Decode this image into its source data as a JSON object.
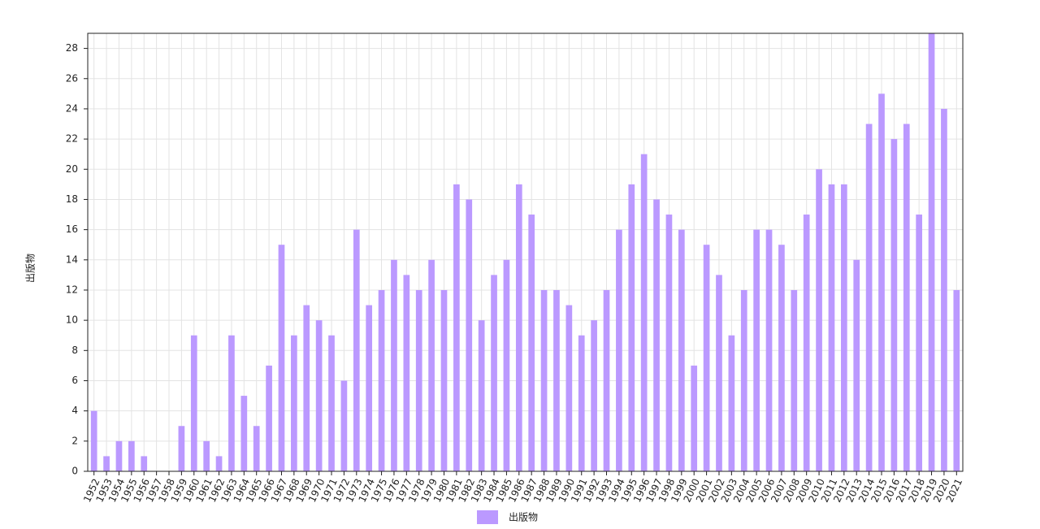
{
  "chart_data": {
    "type": "bar",
    "y_label": "出版物",
    "categories": [
      "1952",
      "1953",
      "1954",
      "1955",
      "1956",
      "1957",
      "1958",
      "1959",
      "1960",
      "1961",
      "1962",
      "1963",
      "1964",
      "1965",
      "1966",
      "1967",
      "1968",
      "1969",
      "1970",
      "1971",
      "1972",
      "1973",
      "1974",
      "1975",
      "1976",
      "1977",
      "1978",
      "1979",
      "1980",
      "1981",
      "1982",
      "1983",
      "1984",
      "1985",
      "1986",
      "1987",
      "1988",
      "1989",
      "1990",
      "1991",
      "1992",
      "1993",
      "1994",
      "1995",
      "1996",
      "1997",
      "1998",
      "1999",
      "2000",
      "2001",
      "2002",
      "2003",
      "2004",
      "2005",
      "2006",
      "2007",
      "2008",
      "2009",
      "2010",
      "2011",
      "2012",
      "2013",
      "2014",
      "2015",
      "2016",
      "2017",
      "2018",
      "2019",
      "2020",
      "2021"
    ],
    "series": [
      {
        "name": "出版物",
        "color": "#bb99ff",
        "values": [
          4,
          1,
          2,
          2,
          1,
          0,
          0,
          3,
          9,
          2,
          1,
          9,
          5,
          3,
          7,
          15,
          9,
          11,
          10,
          9,
          6,
          16,
          11,
          12,
          14,
          13,
          12,
          14,
          12,
          19,
          18,
          10,
          13,
          14,
          19,
          17,
          12,
          12,
          11,
          9,
          10,
          12,
          16,
          19,
          21,
          18,
          17,
          16,
          7,
          15,
          13,
          9,
          12,
          16,
          16,
          15,
          12,
          17,
          20,
          19,
          19,
          14,
          23,
          25,
          22,
          23,
          17,
          29,
          24,
          12
        ]
      }
    ],
    "ylim": [
      0,
      29
    ],
    "yticks": [
      0,
      2,
      4,
      6,
      8,
      10,
      12,
      14,
      16,
      18,
      20,
      22,
      24,
      26,
      28
    ],
    "grid": true
  }
}
